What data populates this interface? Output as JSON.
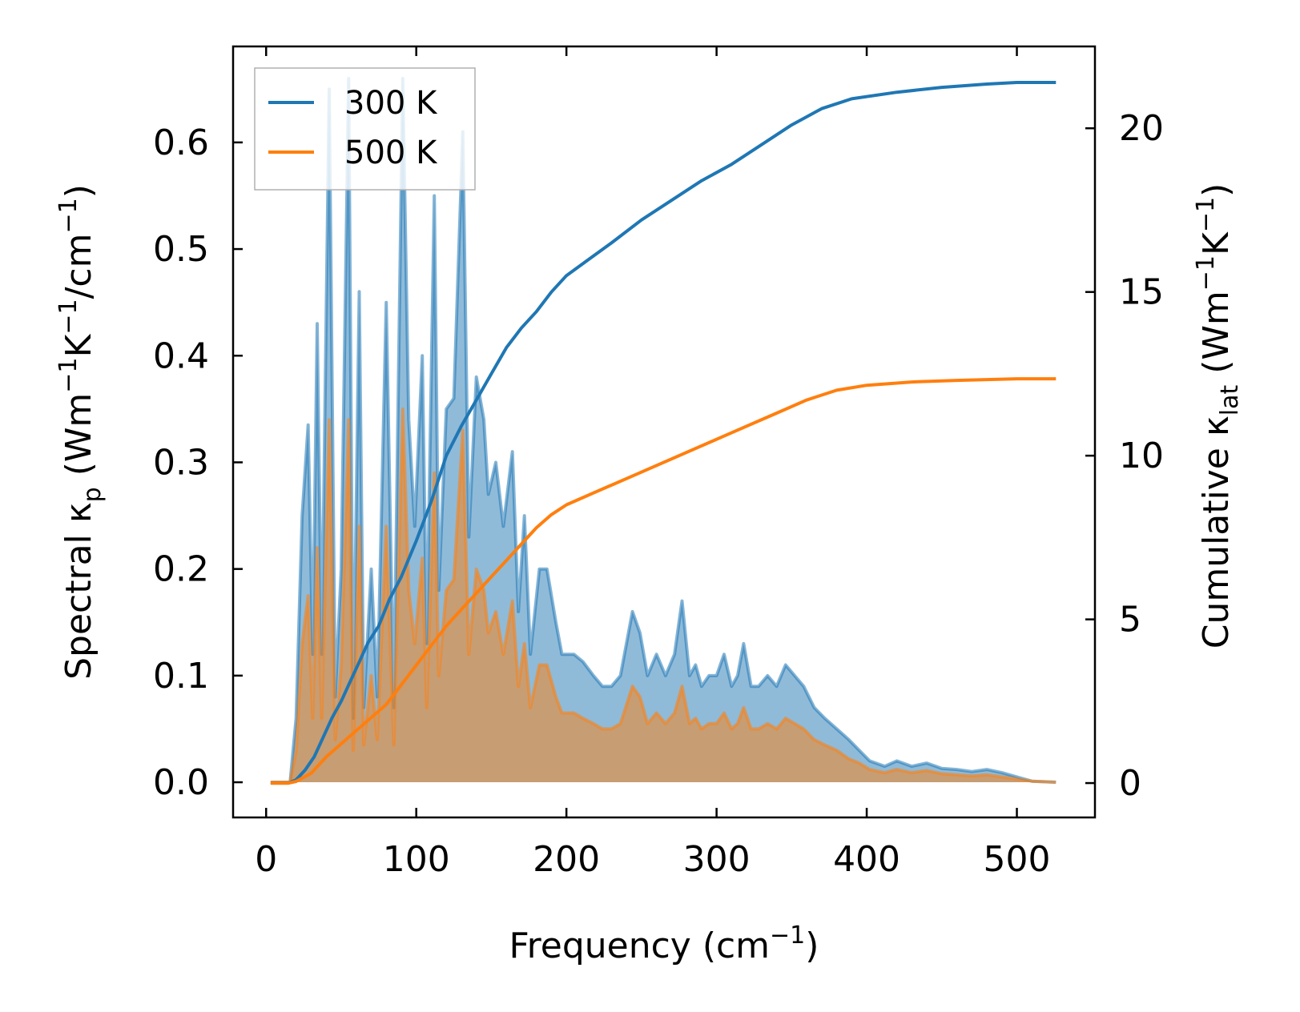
{
  "chart_data": {
    "type": "line",
    "xlabel": "Frequency (cm",
    "xlabel_sup": "−1",
    "xlabel_tail": ")",
    "ylabel_left": {
      "parts": [
        {
          "t": "Spectral κ"
        },
        {
          "t": "p",
          "sub": true
        },
        {
          "t": " (Wm"
        },
        {
          "t": "−1",
          "sup": true
        },
        {
          "t": "K"
        },
        {
          "t": "−1",
          "sup": true
        },
        {
          "t": "/cm"
        },
        {
          "t": "−1",
          "sup": true
        },
        {
          "t": ")"
        }
      ]
    },
    "ylabel_right": {
      "parts": [
        {
          "t": "Cumulative κ"
        },
        {
          "t": "lat",
          "sub": true
        },
        {
          "t": " (Wm"
        },
        {
          "t": "−1",
          "sup": true
        },
        {
          "t": "K"
        },
        {
          "t": "−1",
          "sup": true
        },
        {
          "t": ")"
        }
      ]
    },
    "xlim": [
      -22,
      552
    ],
    "ylim_left": [
      -0.033,
      0.69
    ],
    "ylim_right": [
      -1.05,
      22.5
    ],
    "xticks": [
      0,
      100,
      200,
      300,
      400,
      500
    ],
    "xtick_labels": [
      "0",
      "100",
      "200",
      "300",
      "400",
      "500"
    ],
    "yticks_left": [
      0.0,
      0.1,
      0.2,
      0.3,
      0.4,
      0.5,
      0.6
    ],
    "ytick_labels_left": [
      "0.0",
      "0.1",
      "0.2",
      "0.3",
      "0.4",
      "0.5",
      "0.6"
    ],
    "yticks_right": [
      0,
      5,
      10,
      15,
      20
    ],
    "ytick_labels_right": [
      "0",
      "5",
      "10",
      "15",
      "20"
    ],
    "legend": {
      "placement": "upper-left",
      "entries": [
        {
          "label": "300 K",
          "color": "#1f77b4"
        },
        {
          "label": "500 K",
          "color": "#ff7f0e"
        }
      ]
    },
    "series": [
      {
        "name": "300 K spectral",
        "axis": "left",
        "kind": "filled",
        "color": "#1f77b4",
        "fill_opacity": 0.5,
        "points": [
          [
            3,
            0
          ],
          [
            16,
            0
          ],
          [
            20,
            0.06
          ],
          [
            24,
            0.25
          ],
          [
            28,
            0.335
          ],
          [
            31,
            0.12
          ],
          [
            34,
            0.43
          ],
          [
            37,
            0.12
          ],
          [
            42,
            0.65
          ],
          [
            46,
            0.08
          ],
          [
            50,
            0.2
          ],
          [
            55,
            0.66
          ],
          [
            58,
            0.06
          ],
          [
            62,
            0.46
          ],
          [
            65,
            0.07
          ],
          [
            70,
            0.2
          ],
          [
            74,
            0.08
          ],
          [
            80,
            0.45
          ],
          [
            85,
            0.07
          ],
          [
            91,
            0.66
          ],
          [
            95,
            0.34
          ],
          [
            99,
            0.24
          ],
          [
            104,
            0.4
          ],
          [
            107,
            0.13
          ],
          [
            112,
            0.55
          ],
          [
            115,
            0.18
          ],
          [
            120,
            0.35
          ],
          [
            125,
            0.36
          ],
          [
            131,
            0.61
          ],
          [
            135,
            0.23
          ],
          [
            140,
            0.38
          ],
          [
            145,
            0.34
          ],
          [
            148,
            0.27
          ],
          [
            153,
            0.3
          ],
          [
            158,
            0.24
          ],
          [
            164,
            0.31
          ],
          [
            168,
            0.16
          ],
          [
            172,
            0.25
          ],
          [
            176,
            0.12
          ],
          [
            182,
            0.2
          ],
          [
            187,
            0.2
          ],
          [
            193,
            0.15
          ],
          [
            197,
            0.12
          ],
          [
            205,
            0.12
          ],
          [
            211,
            0.113
          ],
          [
            218,
            0.1
          ],
          [
            224,
            0.09
          ],
          [
            230,
            0.09
          ],
          [
            236,
            0.1
          ],
          [
            244,
            0.16
          ],
          [
            249,
            0.14
          ],
          [
            254,
            0.1
          ],
          [
            260,
            0.12
          ],
          [
            266,
            0.1
          ],
          [
            272,
            0.12
          ],
          [
            277,
            0.17
          ],
          [
            282,
            0.1
          ],
          [
            286,
            0.11
          ],
          [
            290,
            0.09
          ],
          [
            295,
            0.1
          ],
          [
            300,
            0.1
          ],
          [
            305,
            0.12
          ],
          [
            310,
            0.09
          ],
          [
            314,
            0.1
          ],
          [
            318,
            0.13
          ],
          [
            323,
            0.09
          ],
          [
            328,
            0.09
          ],
          [
            334,
            0.1
          ],
          [
            340,
            0.09
          ],
          [
            346,
            0.11
          ],
          [
            352,
            0.1
          ],
          [
            358,
            0.09
          ],
          [
            365,
            0.07
          ],
          [
            372,
            0.06
          ],
          [
            380,
            0.05
          ],
          [
            388,
            0.04
          ],
          [
            395,
            0.03
          ],
          [
            402,
            0.02
          ],
          [
            412,
            0.015
          ],
          [
            420,
            0.02
          ],
          [
            430,
            0.015
          ],
          [
            440,
            0.018
          ],
          [
            450,
            0.013
          ],
          [
            460,
            0.012
          ],
          [
            470,
            0.01
          ],
          [
            480,
            0.012
          ],
          [
            490,
            0.009
          ],
          [
            500,
            0.005
          ],
          [
            510,
            0.001
          ],
          [
            526,
            0
          ]
        ]
      },
      {
        "name": "500 K spectral",
        "axis": "left",
        "kind": "filled",
        "color": "#ff7f0e",
        "fill_opacity": 0.5,
        "points": [
          [
            3,
            0
          ],
          [
            16,
            0
          ],
          [
            20,
            0.03
          ],
          [
            24,
            0.13
          ],
          [
            28,
            0.175
          ],
          [
            31,
            0.06
          ],
          [
            34,
            0.22
          ],
          [
            37,
            0.06
          ],
          [
            42,
            0.34
          ],
          [
            46,
            0.04
          ],
          [
            50,
            0.11
          ],
          [
            55,
            0.34
          ],
          [
            58,
            0.03
          ],
          [
            62,
            0.24
          ],
          [
            65,
            0.035
          ],
          [
            70,
            0.1
          ],
          [
            74,
            0.04
          ],
          [
            80,
            0.24
          ],
          [
            85,
            0.035
          ],
          [
            91,
            0.35
          ],
          [
            95,
            0.18
          ],
          [
            99,
            0.13
          ],
          [
            104,
            0.21
          ],
          [
            107,
            0.07
          ],
          [
            112,
            0.29
          ],
          [
            115,
            0.1
          ],
          [
            120,
            0.18
          ],
          [
            125,
            0.19
          ],
          [
            131,
            0.33
          ],
          [
            135,
            0.12
          ],
          [
            140,
            0.2
          ],
          [
            145,
            0.18
          ],
          [
            148,
            0.14
          ],
          [
            153,
            0.16
          ],
          [
            158,
            0.12
          ],
          [
            164,
            0.17
          ],
          [
            168,
            0.09
          ],
          [
            172,
            0.13
          ],
          [
            176,
            0.07
          ],
          [
            182,
            0.11
          ],
          [
            187,
            0.11
          ],
          [
            193,
            0.08
          ],
          [
            197,
            0.065
          ],
          [
            205,
            0.065
          ],
          [
            211,
            0.06
          ],
          [
            218,
            0.055
          ],
          [
            224,
            0.05
          ],
          [
            230,
            0.05
          ],
          [
            236,
            0.055
          ],
          [
            244,
            0.09
          ],
          [
            249,
            0.08
          ],
          [
            254,
            0.055
          ],
          [
            260,
            0.065
          ],
          [
            266,
            0.055
          ],
          [
            272,
            0.065
          ],
          [
            277,
            0.09
          ],
          [
            282,
            0.055
          ],
          [
            286,
            0.06
          ],
          [
            290,
            0.05
          ],
          [
            295,
            0.055
          ],
          [
            300,
            0.055
          ],
          [
            305,
            0.065
          ],
          [
            310,
            0.05
          ],
          [
            314,
            0.055
          ],
          [
            318,
            0.07
          ],
          [
            323,
            0.05
          ],
          [
            328,
            0.05
          ],
          [
            334,
            0.055
          ],
          [
            340,
            0.05
          ],
          [
            346,
            0.06
          ],
          [
            352,
            0.055
          ],
          [
            358,
            0.05
          ],
          [
            365,
            0.04
          ],
          [
            372,
            0.035
          ],
          [
            380,
            0.03
          ],
          [
            388,
            0.022
          ],
          [
            395,
            0.018
          ],
          [
            402,
            0.012
          ],
          [
            412,
            0.009
          ],
          [
            420,
            0.012
          ],
          [
            430,
            0.009
          ],
          [
            440,
            0.011
          ],
          [
            450,
            0.008
          ],
          [
            460,
            0.007
          ],
          [
            470,
            0.006
          ],
          [
            480,
            0.007
          ],
          [
            490,
            0.005
          ],
          [
            500,
            0.003
          ],
          [
            510,
            0.001
          ],
          [
            526,
            0
          ]
        ]
      },
      {
        "name": "300 K cumulative",
        "axis": "right",
        "kind": "line",
        "color": "#1f77b4",
        "points": [
          [
            3,
            0
          ],
          [
            15,
            0
          ],
          [
            20,
            0.1
          ],
          [
            26,
            0.4
          ],
          [
            32,
            0.8
          ],
          [
            38,
            1.4
          ],
          [
            44,
            2.0
          ],
          [
            50,
            2.5
          ],
          [
            56,
            3.1
          ],
          [
            62,
            3.7
          ],
          [
            68,
            4.3
          ],
          [
            75,
            4.8
          ],
          [
            82,
            5.6
          ],
          [
            90,
            6.3
          ],
          [
            100,
            7.4
          ],
          [
            110,
            8.6
          ],
          [
            120,
            10.0
          ],
          [
            130,
            10.9
          ],
          [
            140,
            11.7
          ],
          [
            150,
            12.5
          ],
          [
            160,
            13.3
          ],
          [
            170,
            13.9
          ],
          [
            180,
            14.4
          ],
          [
            190,
            15.0
          ],
          [
            200,
            15.5
          ],
          [
            215,
            16.0
          ],
          [
            230,
            16.5
          ],
          [
            250,
            17.2
          ],
          [
            270,
            17.8
          ],
          [
            290,
            18.4
          ],
          [
            310,
            18.9
          ],
          [
            330,
            19.5
          ],
          [
            350,
            20.1
          ],
          [
            370,
            20.6
          ],
          [
            390,
            20.9
          ],
          [
            420,
            21.1
          ],
          [
            450,
            21.25
          ],
          [
            480,
            21.35
          ],
          [
            500,
            21.4
          ],
          [
            526,
            21.4
          ]
        ]
      },
      {
        "name": "500 K cumulative",
        "axis": "right",
        "kind": "line",
        "color": "#ff7f0e",
        "points": [
          [
            3,
            0
          ],
          [
            15,
            0
          ],
          [
            20,
            0.05
          ],
          [
            30,
            0.3
          ],
          [
            40,
            0.8
          ],
          [
            50,
            1.2
          ],
          [
            60,
            1.6
          ],
          [
            70,
            2.0
          ],
          [
            80,
            2.4
          ],
          [
            90,
            3.0
          ],
          [
            100,
            3.6
          ],
          [
            110,
            4.2
          ],
          [
            120,
            4.8
          ],
          [
            130,
            5.3
          ],
          [
            140,
            5.8
          ],
          [
            150,
            6.3
          ],
          [
            160,
            6.8
          ],
          [
            170,
            7.3
          ],
          [
            180,
            7.8
          ],
          [
            190,
            8.2
          ],
          [
            200,
            8.5
          ],
          [
            220,
            8.9
          ],
          [
            240,
            9.3
          ],
          [
            260,
            9.7
          ],
          [
            280,
            10.1
          ],
          [
            300,
            10.5
          ],
          [
            320,
            10.9
          ],
          [
            340,
            11.3
          ],
          [
            360,
            11.7
          ],
          [
            380,
            12.0
          ],
          [
            400,
            12.15
          ],
          [
            430,
            12.25
          ],
          [
            460,
            12.3
          ],
          [
            500,
            12.35
          ],
          [
            526,
            12.35
          ]
        ]
      }
    ]
  }
}
